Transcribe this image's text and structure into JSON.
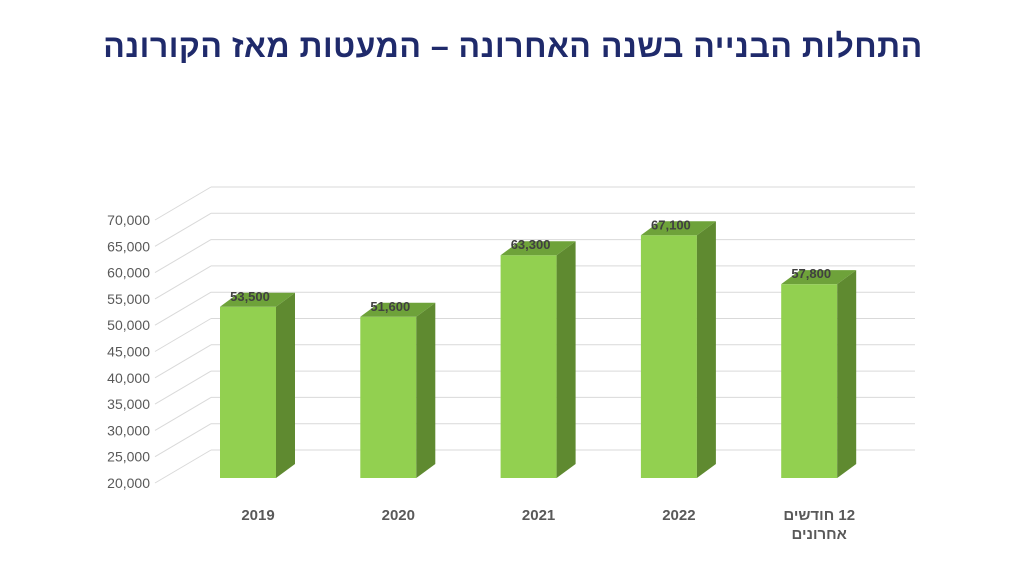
{
  "slide": {
    "title": "התחלות הבנייה בשנה האחרונה – המעטות מאז הקורונה"
  },
  "colors": {
    "title": "#1f2a6b",
    "bar_front": "#92d050",
    "bar_side": "#5f8a30",
    "bar_top": "#6ea23a",
    "grid": "#d9d9d9",
    "text": "#595959"
  },
  "chart_data": {
    "type": "bar",
    "title": "התחלות הבנייה בשנה האחרונה – המעטות מאז הקורונה",
    "categories": [
      "2019",
      "2020",
      "2021",
      "2022",
      "12 חודשים אחרונים"
    ],
    "category_lines": [
      [
        "2019"
      ],
      [
        "2020"
      ],
      [
        "2021"
      ],
      [
        "2022"
      ],
      [
        "12 חודשים",
        "אחרונים"
      ]
    ],
    "values": [
      53500,
      51600,
      63300,
      67100,
      57800
    ],
    "value_labels": [
      "53,500",
      "51,600",
      "63,300",
      "67,100",
      "57,800"
    ],
    "ylim": [
      20000,
      70000
    ],
    "yticks": [
      20000,
      25000,
      30000,
      35000,
      40000,
      45000,
      50000,
      55000,
      60000,
      65000,
      70000
    ],
    "ytick_labels": [
      "20,000",
      "25,000",
      "30,000",
      "35,000",
      "40,000",
      "45,000",
      "50,000",
      "55,000",
      "60,000",
      "65,000",
      "70,000"
    ],
    "xlabel": "",
    "ylabel": "",
    "grid": true,
    "legend": "none",
    "style": "3d-column"
  }
}
